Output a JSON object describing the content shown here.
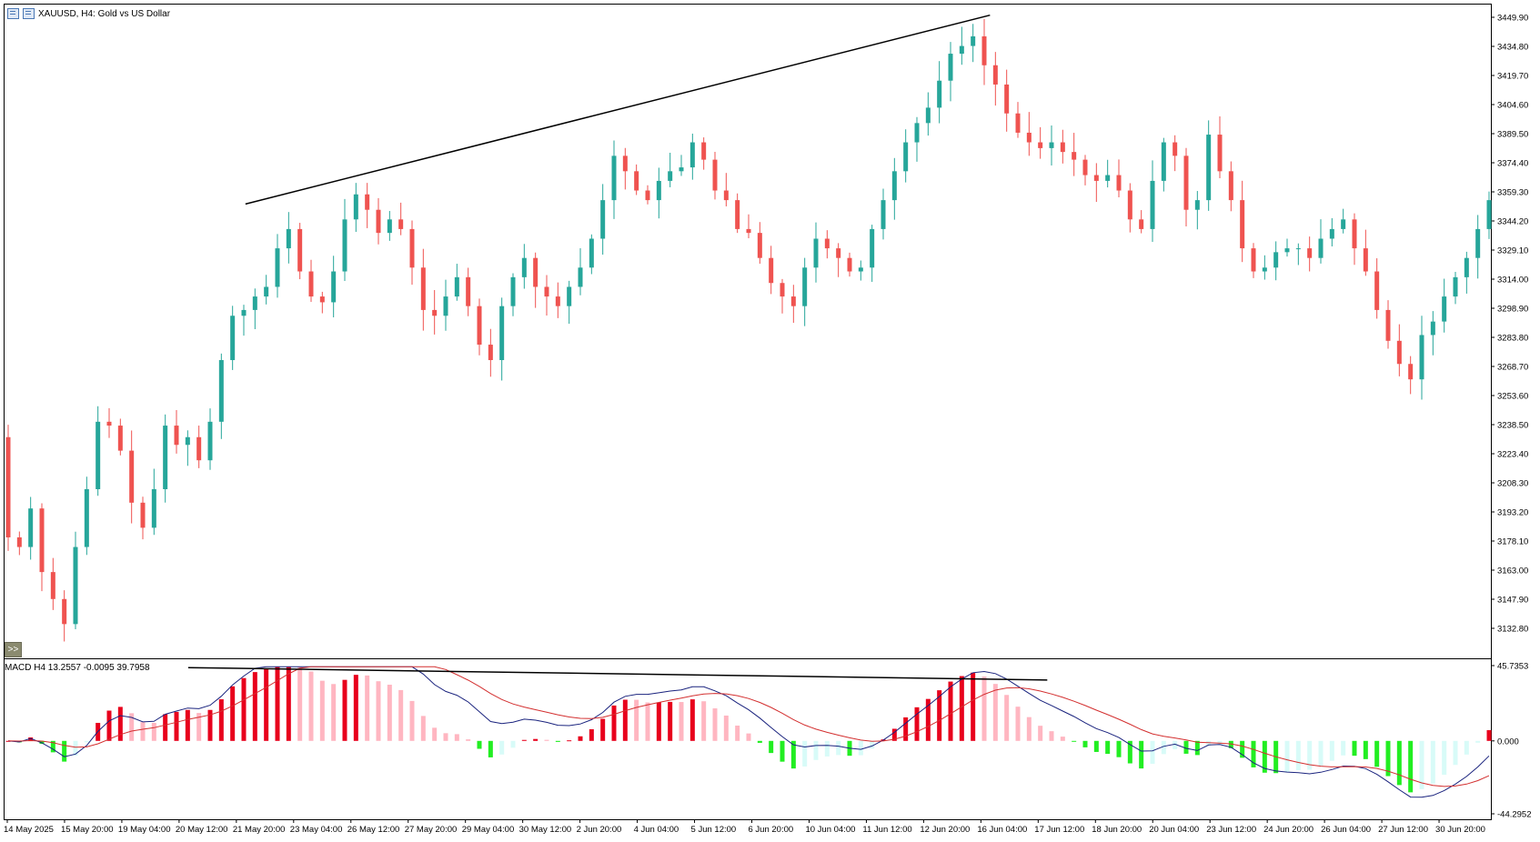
{
  "window": {
    "title": "XAUUSD, H4:  Gold vs US Dollar",
    "expand_label": ">>"
  },
  "macd": {
    "label": "MACD H4 13.2557 -0.0095 39.7958"
  },
  "colors": {
    "bull": "#26a69a",
    "bear": "#ef5350",
    "hist_up_strong": "#e8001c",
    "hist_up_weak": "#ffb6c1",
    "hist_down_strong": "#22ee22",
    "hist_down_weak": "#d8fbf8",
    "macd_line": "#1a237e",
    "signal_line": "#d32f2f",
    "trendline": "#000000"
  },
  "chart_data": {
    "type": "candlestick",
    "symbol": "XAUUSD",
    "timeframe": "H4",
    "price_axis_ticks": [
      "3449.90",
      "3434.80",
      "3419.70",
      "3404.60",
      "3389.50",
      "3374.40",
      "3359.30",
      "3344.20",
      "3329.10",
      "3314.00",
      "3298.90",
      "3283.80",
      "3268.70",
      "3253.60",
      "3238.50",
      "3223.40",
      "3208.30",
      "3193.20",
      "3178.10",
      "3163.00",
      "3147.90",
      "3132.80"
    ],
    "macd_axis_ticks": [
      "45.7353",
      "0.000",
      "-44.2952"
    ],
    "time_axis_labels": [
      "14 May 2025",
      "15 May 20:00",
      "19 May 04:00",
      "20 May 12:00",
      "21 May 20:00",
      "23 May 04:00",
      "26 May 12:00",
      "27 May 20:00",
      "29 May 04:00",
      "30 May 12:00",
      "2 Jun 20:00",
      "4 Jun 04:00",
      "5 Jun 12:00",
      "6 Jun 20:00",
      "10 Jun 04:00",
      "11 Jun 12:00",
      "12 Jun 20:00",
      "16 Jun 04:00",
      "17 Jun 12:00",
      "18 Jun 20:00",
      "20 Jun 04:00",
      "23 Jun 12:00",
      "24 Jun 20:00",
      "26 Jun 04:00",
      "27 Jun 12:00",
      "30 Jun 20:00"
    ],
    "price_range": [
      3117.7,
      3457.0
    ],
    "macd_range": [
      -44.2952,
      45.7353
    ],
    "close_path": [
      3180,
      3175,
      3195,
      3162,
      3148,
      3135,
      3175,
      3205,
      3240,
      3238,
      3225,
      3198,
      3185,
      3205,
      3238,
      3228,
      3232,
      3220,
      3240,
      3272,
      3295,
      3298,
      3305,
      3310,
      3330,
      3340,
      3318,
      3305,
      3302,
      3318,
      3345,
      3358,
      3350,
      3338,
      3345,
      3340,
      3320,
      3298,
      3295,
      3305,
      3315,
      3300,
      3280,
      3272,
      3300,
      3315,
      3325,
      3310,
      3305,
      3300,
      3310,
      3320,
      3335,
      3355,
      3378,
      3370,
      3360,
      3355,
      3365,
      3370,
      3372,
      3385,
      3376,
      3360,
      3355,
      3340,
      3338,
      3325,
      3312,
      3305,
      3300,
      3320,
      3335,
      3330,
      3325,
      3318,
      3320,
      3340,
      3355,
      3370,
      3385,
      3395,
      3403,
      3417,
      3431,
      3435,
      3440,
      3425,
      3415,
      3400,
      3390,
      3385,
      3382,
      3385,
      3380,
      3376,
      3368,
      3365,
      3368,
      3360,
      3345,
      3340,
      3365,
      3385,
      3378,
      3350,
      3355,
      3389,
      3370,
      3355,
      3330,
      3318,
      3320,
      3328,
      3330,
      3330,
      3325,
      3335,
      3340,
      3345,
      3330,
      3318,
      3298,
      3282,
      3270,
      3262,
      3285,
      3292,
      3305,
      3315,
      3325,
      3340,
      3355
    ],
    "trendlines": [
      {
        "pane": "price",
        "from": [
          "21 May 20:00",
          3353
        ],
        "to": [
          "16 Jun 04:00",
          3451
        ]
      },
      {
        "pane": "macd",
        "from": [
          "20 May 12:00",
          44.5
        ],
        "to": [
          "17 Jun 12:00",
          37.0
        ]
      }
    ]
  }
}
